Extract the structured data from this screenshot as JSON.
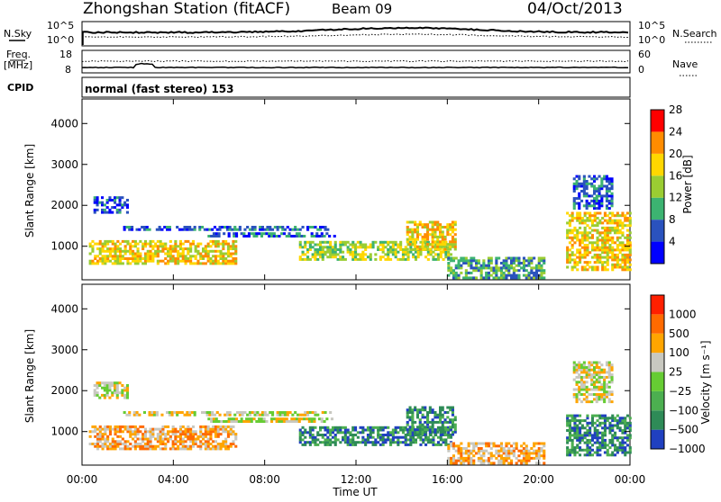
{
  "header": {
    "title": "Zhongshan Station (fitACF)",
    "beam": "Beam 09",
    "date": "04/Oct/2013"
  },
  "top_panels": {
    "nsky_label": "N.Sky",
    "nsearch_label": "N.Search",
    "freq_label_1": "Freq.",
    "freq_label_2": "[MHz]",
    "nave_label": "Nave",
    "cpid_label": "CPID",
    "cpid_text": "normal (fast stereo) 153",
    "left_ticks_top": [
      "10^5",
      "10^0"
    ],
    "right_ticks_top": [
      "10^5",
      "10^0"
    ],
    "left_ticks_freq": [
      "18",
      "8"
    ],
    "right_ticks_nave": [
      "60",
      "0"
    ]
  },
  "chart_data": [
    {
      "type": "heatmap",
      "name": "Power",
      "ylabel": "Slant Range [km]",
      "ylim": [
        180,
        4600
      ],
      "yticks": [
        1000,
        2000,
        3000,
        4000
      ],
      "xlim": [
        0,
        24
      ],
      "colorbar_label": "Power [dB]",
      "colorbar_ticks": [
        "4",
        "8",
        "12",
        "16",
        "20",
        "24",
        "28"
      ],
      "colors": [
        "#0000ff",
        "#2a52be",
        "#3cb371",
        "#9acd32",
        "#ffd700",
        "#ff8c00",
        "#ff0000"
      ],
      "regions": [
        {
          "t0": 0.3,
          "t1": 6.7,
          "r0": 550,
          "r1": 1100,
          "level": 4
        },
        {
          "t0": 1.8,
          "t1": 10.9,
          "r0": 1380,
          "r1": 1500,
          "level": 1
        },
        {
          "t0": 5.5,
          "t1": 11.0,
          "r0": 1220,
          "r1": 1330,
          "level": 1
        },
        {
          "t0": 9.5,
          "t1": 16.2,
          "r0": 650,
          "r1": 1100,
          "level": 3
        },
        {
          "t0": 14.2,
          "t1": 16.3,
          "r0": 900,
          "r1": 1600,
          "level": 4
        },
        {
          "t0": 16.0,
          "t1": 20.2,
          "r0": 200,
          "r1": 700,
          "level": 2
        },
        {
          "t0": 21.2,
          "t1": 24.0,
          "r0": 400,
          "r1": 1800,
          "level": 4
        },
        {
          "t0": 21.5,
          "t1": 23.2,
          "r0": 1900,
          "r1": 2700,
          "level": 1
        },
        {
          "t0": 0.5,
          "t1": 2.0,
          "r0": 1800,
          "r1": 2200,
          "level": 1
        }
      ]
    },
    {
      "type": "heatmap",
      "name": "Velocity",
      "ylabel": "Slant Range [km]",
      "ylim": [
        180,
        4600
      ],
      "yticks": [
        1000,
        2000,
        3000,
        4000
      ],
      "xlim": [
        0,
        24
      ],
      "xticks": [
        "00:00",
        "04:00",
        "08:00",
        "12:00",
        "16:00",
        "20:00",
        "00:00"
      ],
      "xlabel": "Time UT",
      "colorbar_label": "Velocity [m s⁻¹]",
      "colorbar_ticks": [
        "1000",
        "500",
        "100",
        "25",
        "−25",
        "−100",
        "−500",
        "−1000"
      ],
      "colors": [
        "#2040c0",
        "#2e8b57",
        "#4caf50",
        "#66cc33",
        "#c8c8c0",
        "#ffa500",
        "#ff6a00",
        "#ff2000"
      ],
      "regions": [
        {
          "t0": 0.3,
          "t1": 6.7,
          "r0": 550,
          "r1": 1100,
          "level": 5
        },
        {
          "t0": 1.8,
          "t1": 10.9,
          "r0": 1380,
          "r1": 1500,
          "level": 4
        },
        {
          "t0": 5.5,
          "t1": 11.0,
          "r0": 1220,
          "r1": 1330,
          "level": 4
        },
        {
          "t0": 9.5,
          "t1": 16.2,
          "r0": 650,
          "r1": 1100,
          "level": 1
        },
        {
          "t0": 14.2,
          "t1": 16.3,
          "r0": 900,
          "r1": 1600,
          "level": 1
        },
        {
          "t0": 16.0,
          "t1": 20.2,
          "r0": 200,
          "r1": 700,
          "level": 5
        },
        {
          "t0": 21.2,
          "t1": 24.0,
          "r0": 400,
          "r1": 1400,
          "level": 1
        },
        {
          "t0": 21.5,
          "t1": 23.2,
          "r0": 1700,
          "r1": 2700,
          "level": 4
        },
        {
          "t0": 0.5,
          "t1": 2.0,
          "r0": 1800,
          "r1": 2200,
          "level": 4
        }
      ]
    }
  ]
}
